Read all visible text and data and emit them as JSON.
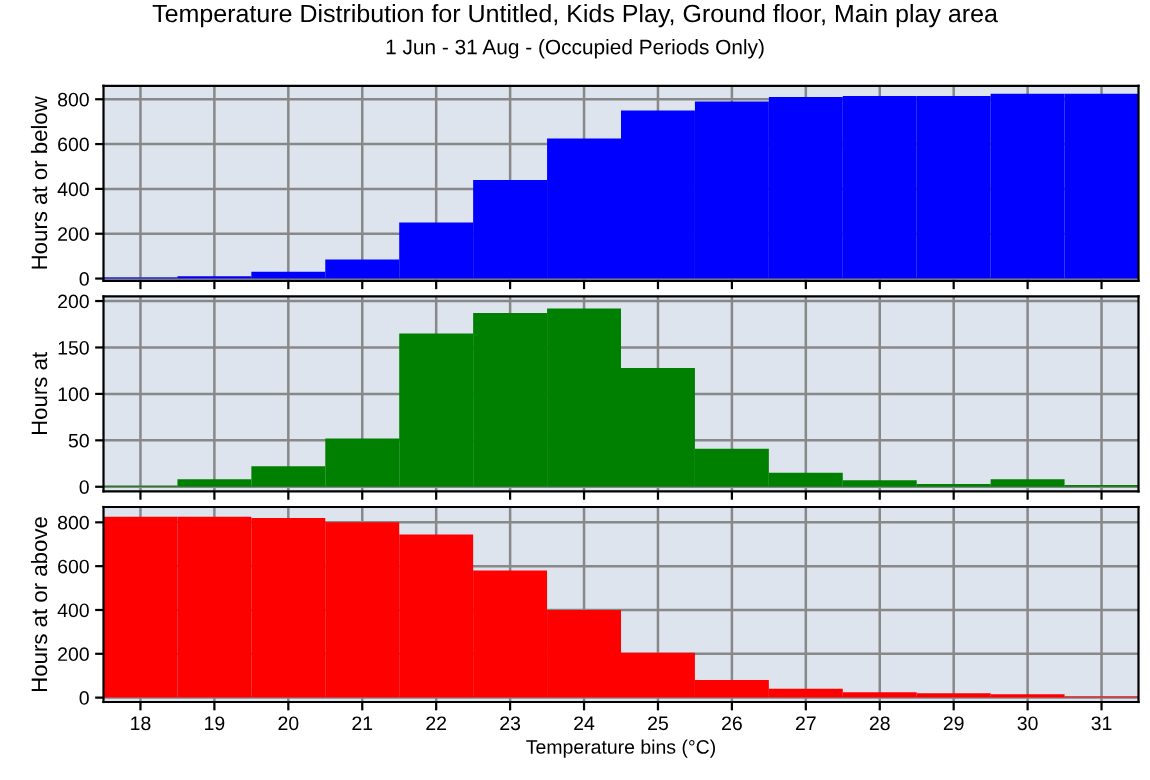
{
  "chart_data": [
    {
      "type": "histogram",
      "title": "Temperature Distribution for Untitled, Kids Play, Ground floor, Main play area",
      "subtitle": "1 Jun - 31 Aug - (Occupied Periods Only)",
      "ylabel": "Hours at or below",
      "color": "#0000ff",
      "bins": [
        17.5,
        18.5,
        19.5,
        20.5,
        21.5,
        22.5,
        23.5,
        24.5,
        25.5,
        26.5,
        27.5,
        28.5,
        29.5,
        30.5,
        31.5
      ],
      "values": [
        5,
        10,
        30,
        85,
        250,
        440,
        625,
        750,
        790,
        810,
        815,
        815,
        825,
        825
      ],
      "xlim": [
        17.5,
        31.5
      ],
      "xticks": [
        18,
        19,
        20,
        21,
        22,
        23,
        24,
        25,
        26,
        27,
        28,
        29,
        30,
        31
      ],
      "ylim": [
        -10,
        860
      ],
      "yticks": [
        0,
        200,
        400,
        600,
        800
      ],
      "grid": true,
      "tick_labels": "y"
    },
    {
      "type": "histogram",
      "ylabel": "Hours at",
      "color": "#008000",
      "bins": [
        17.5,
        18.5,
        19.5,
        20.5,
        21.5,
        22.5,
        23.5,
        24.5,
        25.5,
        26.5,
        27.5,
        28.5,
        29.5,
        30.5,
        31.5
      ],
      "values": [
        1,
        8,
        22,
        52,
        165,
        187,
        192,
        128,
        41,
        15,
        7,
        3,
        8,
        2
      ],
      "xlim": [
        17.5,
        31.5
      ],
      "xticks": [
        18,
        19,
        20,
        21,
        22,
        23,
        24,
        25,
        26,
        27,
        28,
        29,
        30,
        31
      ],
      "ylim": [
        -5,
        205
      ],
      "yticks": [
        0,
        50,
        100,
        150,
        200
      ],
      "grid": true,
      "tick_labels": "y"
    },
    {
      "type": "histogram",
      "ylabel": "Hours at or above",
      "xlabel": "Temperature bins (°C)",
      "color": "#ff0000",
      "bins": [
        17.5,
        18.5,
        19.5,
        20.5,
        21.5,
        22.5,
        23.5,
        24.5,
        25.5,
        26.5,
        27.5,
        28.5,
        29.5,
        30.5,
        31.5
      ],
      "values": [
        825,
        825,
        820,
        800,
        745,
        580,
        400,
        205,
        80,
        40,
        25,
        20,
        15,
        5
      ],
      "xlim": [
        17.5,
        31.5
      ],
      "xticks": [
        18,
        19,
        20,
        21,
        22,
        23,
        24,
        25,
        26,
        27,
        28,
        29,
        30,
        31
      ],
      "ylim": [
        -20,
        870
      ],
      "yticks": [
        0,
        200,
        400,
        600,
        800
      ],
      "grid": true
    }
  ]
}
